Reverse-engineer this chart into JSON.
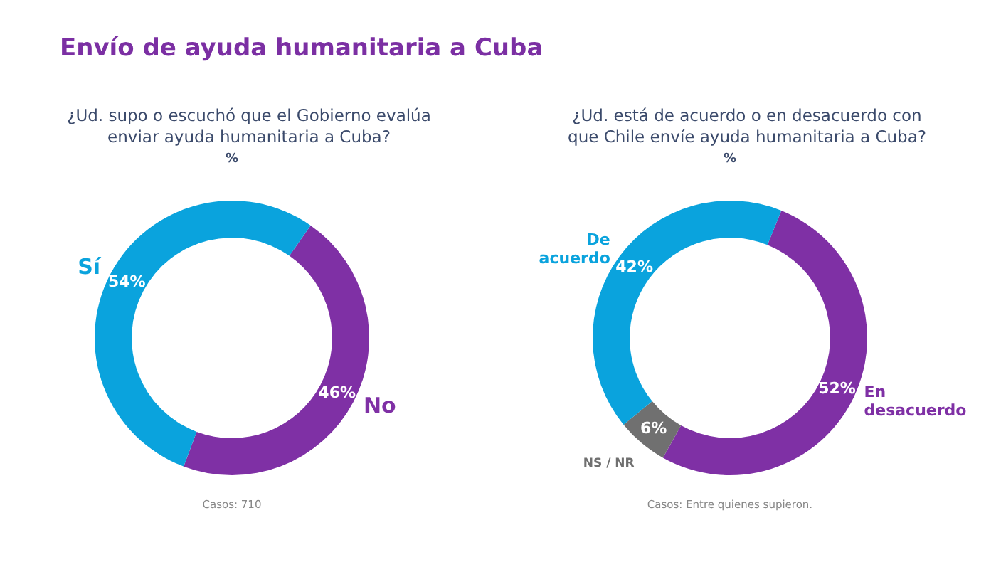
{
  "chart_data": [
    {
      "type": "donut",
      "title": "Envío de ayuda humanitaria a Cuba",
      "subtitle": "¿Ud. supo o escuchó que el Gobierno evalúa enviar ayuda humanitaria a Cuba?",
      "categories": [
        "No",
        "Sí"
      ],
      "values": [
        46,
        54
      ],
      "colors": [
        "#7f30a5",
        "#0aa3dd"
      ],
      "value_labels": [
        "46%",
        "54%"
      ],
      "annotations": [
        "%",
        "Casos: 710"
      ]
    },
    {
      "type": "donut",
      "subtitle": "¿Ud. está de acuerdo o en desacuerdo con que Chile envíe ayuda humanitaria a Cuba?",
      "categories": [
        "En desacuerdo",
        "NS / NR",
        "De acuerdo"
      ],
      "values": [
        52,
        6,
        42
      ],
      "colors": [
        "#7f30a5",
        "#707070",
        "#0aa3dd"
      ],
      "value_labels": [
        "52%",
        "6%",
        "42%"
      ],
      "annotations": [
        "%",
        "Casos: Entre quienes supieron."
      ]
    }
  ]
}
